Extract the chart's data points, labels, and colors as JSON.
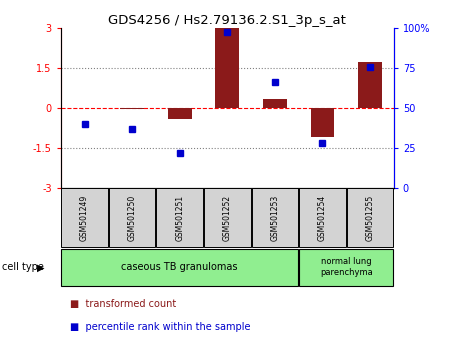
{
  "title": "GDS4256 / Hs2.79136.2.S1_3p_s_at",
  "samples": [
    "GSM501249",
    "GSM501250",
    "GSM501251",
    "GSM501252",
    "GSM501253",
    "GSM501254",
    "GSM501255"
  ],
  "transformed_count": [
    0.0,
    -0.05,
    -0.4,
    3.0,
    0.35,
    -1.1,
    1.75
  ],
  "percentile_rank": [
    40,
    37,
    22,
    98,
    66,
    28,
    76
  ],
  "ylim_left": [
    -3,
    3
  ],
  "ylim_right": [
    0,
    100
  ],
  "yticks_left": [
    -3,
    -1.5,
    0,
    1.5,
    3
  ],
  "yticks_right": [
    0,
    25,
    50,
    75,
    100
  ],
  "ytick_labels_left": [
    "-3",
    "-1.5",
    "0",
    "1.5",
    "3"
  ],
  "ytick_labels_right": [
    "0",
    "25",
    "50",
    "75",
    "100%"
  ],
  "hlines_dotted": [
    -1.5,
    1.5
  ],
  "bar_color_red": "#8B1A1A",
  "marker_color_blue": "#0000CD",
  "group1_label": "caseous TB granulomas",
  "group1_count": 5,
  "group2_label": "normal lung\nparenchyma",
  "group2_count": 2,
  "group_color": "#90EE90",
  "sample_box_color": "#d3d3d3",
  "cell_type_label": "cell type",
  "legend_items": [
    {
      "color": "#8B1A1A",
      "label": "transformed count"
    },
    {
      "color": "#0000CD",
      "label": "percentile rank within the sample"
    }
  ],
  "background_color": "#ffffff"
}
